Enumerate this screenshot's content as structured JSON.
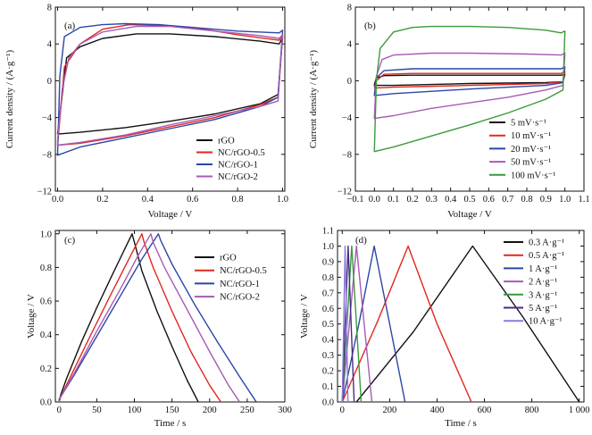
{
  "chart_data": [
    {
      "id": "a",
      "panel_label": "(a)",
      "type": "line",
      "xlabel": "Voltage / V",
      "ylabel": "Current density / (A·g⁻¹)",
      "xlim": [
        -0.01,
        1.01
      ],
      "ylim": [
        -12,
        8
      ],
      "xticks": [
        0.0,
        0.2,
        0.4,
        0.6,
        0.8,
        1.0
      ],
      "xtick_labels": [
        "0.0",
        "0.2",
        "0.4",
        "0.6",
        "0.8",
        "1.0"
      ],
      "yticks": [
        -12,
        -8,
        -4,
        0,
        4,
        8
      ],
      "ytick_labels": [
        "−12",
        "−8",
        "−4",
        "0",
        "4",
        "8"
      ],
      "legend_position": "bottom-right",
      "series": [
        {
          "name": "rGO",
          "color": "#111111",
          "x": [
            0.0,
            0.04,
            0.1,
            0.2,
            0.35,
            0.5,
            0.7,
            0.9,
            0.985,
            1.0,
            0.98,
            0.9,
            0.7,
            0.5,
            0.3,
            0.1,
            0.0,
            0.0
          ],
          "y": [
            -5.8,
            2.5,
            3.7,
            4.6,
            5.1,
            5.1,
            4.8,
            4.3,
            4.0,
            4.7,
            -1.5,
            -2.5,
            -3.6,
            -4.4,
            -5.1,
            -5.6,
            -5.8,
            -5.8
          ]
        },
        {
          "name": "NC/rGO-0.5",
          "color": "#e0281e",
          "x": [
            0.0,
            0.03,
            0.1,
            0.2,
            0.32,
            0.45,
            0.6,
            0.8,
            0.985,
            1.0,
            0.98,
            0.9,
            0.7,
            0.5,
            0.3,
            0.1,
            0.0,
            0.0
          ],
          "y": [
            -7.0,
            1.5,
            4.0,
            5.6,
            6.1,
            6.0,
            5.8,
            5.0,
            4.4,
            5.0,
            -1.8,
            -2.6,
            -4.0,
            -5.0,
            -6.0,
            -6.8,
            -7.0,
            -7.0
          ]
        },
        {
          "name": "NC/rGO-1",
          "color": "#2b46a6",
          "x": [
            0.0,
            0.01,
            0.03,
            0.1,
            0.2,
            0.3,
            0.45,
            0.6,
            0.8,
            0.985,
            1.0,
            0.98,
            0.9,
            0.7,
            0.5,
            0.3,
            0.1,
            0.0,
            0.0
          ],
          "y": [
            -8.0,
            0.5,
            4.8,
            5.8,
            6.1,
            6.2,
            6.1,
            5.8,
            5.4,
            5.2,
            5.5,
            -1.8,
            -2.8,
            -4.2,
            -5.2,
            -6.2,
            -7.2,
            -8.1,
            -8.0
          ]
        },
        {
          "name": "NC/rGO-2",
          "color": "#a85ab4",
          "x": [
            0.0,
            0.02,
            0.05,
            0.1,
            0.2,
            0.35,
            0.5,
            0.7,
            0.9,
            0.985,
            1.0,
            0.98,
            0.9,
            0.7,
            0.5,
            0.3,
            0.1,
            0.0,
            0.0
          ],
          "y": [
            -6.5,
            -1.0,
            2.5,
            4.0,
            5.3,
            5.9,
            5.9,
            5.4,
            4.9,
            4.6,
            5.0,
            -2.2,
            -2.8,
            -3.8,
            -4.8,
            -5.9,
            -6.7,
            -7.0,
            -6.5
          ]
        }
      ]
    },
    {
      "id": "b",
      "panel_label": "(b)",
      "type": "line",
      "xlabel": "Voltage / V",
      "ylabel": "Current density / (A·g⁻¹)",
      "xlim": [
        -0.1,
        1.1
      ],
      "ylim": [
        -12,
        8
      ],
      "xticks": [
        -0.1,
        0.0,
        0.1,
        0.2,
        0.3,
        0.4,
        0.5,
        0.6,
        0.7,
        0.8,
        0.9,
        1.0,
        1.1
      ],
      "xtick_labels": [
        "−0.1",
        "0.0",
        "0.1",
        "0.2",
        "0.3",
        "0.4",
        "0.5",
        "0.6",
        "0.7",
        "0.8",
        "0.9",
        "1.0",
        "1.1"
      ],
      "yticks": [
        -12,
        -8,
        -4,
        0,
        4,
        8
      ],
      "ytick_labels": [
        "−12",
        "−8",
        "−4",
        "0",
        "4",
        "8"
      ],
      "legend_position": "bottom-right",
      "series": [
        {
          "name": "5 mV·s⁻¹",
          "color": "#111111",
          "x": [
            0.0,
            0.01,
            0.05,
            0.2,
            0.5,
            0.8,
            0.98,
            1.0,
            0.99,
            0.9,
            0.5,
            0.1,
            0.0,
            0.0
          ],
          "y": [
            -0.4,
            0.3,
            0.55,
            0.6,
            0.6,
            0.6,
            0.6,
            0.7,
            -0.1,
            -0.2,
            -0.3,
            -0.5,
            -0.5,
            -0.4
          ]
        },
        {
          "name": "10 mV·s⁻¹",
          "color": "#e0281e",
          "x": [
            0.0,
            0.01,
            0.05,
            0.2,
            0.5,
            0.8,
            0.98,
            1.0,
            0.99,
            0.9,
            0.5,
            0.1,
            0.0,
            0.0
          ],
          "y": [
            -0.8,
            0.0,
            0.7,
            0.8,
            0.8,
            0.8,
            0.8,
            1.0,
            -0.1,
            -0.3,
            -0.5,
            -0.7,
            -0.8,
            -0.8
          ]
        },
        {
          "name": "20 mV·s⁻¹",
          "color": "#2b46a6",
          "x": [
            0.0,
            0.01,
            0.05,
            0.2,
            0.5,
            0.8,
            0.98,
            1.0,
            0.99,
            0.9,
            0.5,
            0.1,
            0.0,
            0.0
          ],
          "y": [
            -1.5,
            0.3,
            1.1,
            1.3,
            1.3,
            1.3,
            1.3,
            1.5,
            -0.2,
            -0.5,
            -0.9,
            -1.4,
            -1.6,
            -1.5
          ]
        },
        {
          "name": "50 mV·s⁻¹",
          "color": "#a85ab4",
          "x": [
            0.0,
            0.01,
            0.04,
            0.1,
            0.3,
            0.5,
            0.8,
            0.98,
            1.0,
            0.99,
            0.9,
            0.7,
            0.5,
            0.3,
            0.1,
            0.0,
            0.0
          ],
          "y": [
            -4.0,
            0.5,
            2.3,
            2.8,
            3.0,
            3.0,
            2.9,
            2.8,
            3.0,
            -0.5,
            -1.0,
            -1.8,
            -2.4,
            -3.0,
            -3.8,
            -4.1,
            -4.0
          ]
        },
        {
          "name": "100 mV·s⁻¹",
          "color": "#3b9a3b",
          "x": [
            0.0,
            0.01,
            0.03,
            0.1,
            0.2,
            0.3,
            0.5,
            0.7,
            0.9,
            0.98,
            1.0,
            0.99,
            0.9,
            0.7,
            0.5,
            0.3,
            0.1,
            0.0,
            0.0
          ],
          "y": [
            -7.6,
            0.0,
            3.5,
            5.3,
            5.8,
            5.9,
            5.9,
            5.8,
            5.5,
            5.2,
            5.4,
            -1.0,
            -2.0,
            -3.5,
            -4.8,
            -6.0,
            -7.2,
            -7.7,
            -7.6
          ]
        }
      ]
    },
    {
      "id": "c",
      "panel_label": "(c)",
      "type": "line",
      "xlabel": "Time / s",
      "ylabel": "Voltage / V",
      "xlim": [
        -5,
        300
      ],
      "ylim": [
        0,
        1.02
      ],
      "xticks": [
        0,
        50,
        100,
        150,
        200,
        250,
        300
      ],
      "xtick_labels": [
        "0",
        "50",
        "100",
        "150",
        "200",
        "250",
        "300"
      ],
      "yticks": [
        0.0,
        0.2,
        0.4,
        0.6,
        0.8,
        1.0
      ],
      "ytick_labels": [
        "0.0",
        "0.2",
        "0.4",
        "0.6",
        "0.8",
        "1.0"
      ],
      "legend_position": "top-right",
      "series": [
        {
          "name": "rGO",
          "color": "#111111",
          "x": [
            0,
            2,
            10,
            30,
            50,
            70,
            97,
            100,
            110,
            130,
            150,
            170,
            185
          ],
          "y": [
            0.0,
            0.04,
            0.14,
            0.36,
            0.56,
            0.75,
            1.0,
            0.95,
            0.78,
            0.54,
            0.33,
            0.13,
            0.0
          ]
        },
        {
          "name": "NC/rGO-0.5",
          "color": "#e0281e",
          "x": [
            0,
            2,
            15,
            40,
            70,
            95,
            110,
            113,
            125,
            150,
            175,
            200,
            215
          ],
          "y": [
            0.0,
            0.03,
            0.15,
            0.38,
            0.65,
            0.87,
            1.0,
            0.95,
            0.8,
            0.54,
            0.3,
            0.1,
            0.0
          ]
        },
        {
          "name": "NC/rGO-1",
          "color": "#2b46a6",
          "x": [
            0,
            2,
            20,
            50,
            80,
            110,
            132,
            135,
            150,
            180,
            210,
            240,
            262
          ],
          "y": [
            0.0,
            0.03,
            0.16,
            0.39,
            0.62,
            0.85,
            1.0,
            0.96,
            0.82,
            0.58,
            0.36,
            0.15,
            0.0
          ]
        },
        {
          "name": "NC/rGO-2",
          "color": "#a85ab4",
          "x": [
            0,
            2,
            20,
            50,
            80,
            105,
            122,
            125,
            140,
            170,
            200,
            225,
            240
          ],
          "y": [
            0.0,
            0.03,
            0.17,
            0.42,
            0.66,
            0.87,
            1.0,
            0.95,
            0.8,
            0.55,
            0.3,
            0.1,
            0.0
          ]
        }
      ]
    },
    {
      "id": "d",
      "panel_label": "(d)",
      "type": "line",
      "xlabel": "Time / s",
      "ylabel": "Voltage / V",
      "xlim": [
        -20,
        1020
      ],
      "ylim": [
        0,
        1.1
      ],
      "xticks": [
        0,
        200,
        400,
        600,
        800,
        1000
      ],
      "xtick_labels": [
        "0",
        "200",
        "400",
        "600",
        "800",
        "1 000"
      ],
      "yticks": [
        0.0,
        0.1,
        0.2,
        0.3,
        0.4,
        0.5,
        0.6,
        0.7,
        0.8,
        0.9,
        1.0,
        1.1
      ],
      "ytick_labels": [
        "0.0",
        "0.1",
        "0.2",
        "0.3",
        "0.4",
        "0.5",
        "0.6",
        "0.7",
        "0.8",
        "0.9",
        "1.0",
        "1.1"
      ],
      "legend_position": "top-right",
      "series": [
        {
          "name": "0.3 A·g⁻¹",
          "color": "#111111",
          "x": [
            60,
            300,
            550,
            760,
            1000
          ],
          "y": [
            0.0,
            0.45,
            1.0,
            0.55,
            0.0
          ]
        },
        {
          "name": "0.5 A·g⁻¹",
          "color": "#e0281e",
          "x": [
            0,
            150,
            278,
            400,
            545
          ],
          "y": [
            0.0,
            0.52,
            1.0,
            0.5,
            0.0
          ]
        },
        {
          "name": "1 A·g⁻¹",
          "color": "#2b46a6",
          "x": [
            0,
            70,
            135,
            200,
            265
          ],
          "y": [
            0.0,
            0.5,
            1.0,
            0.5,
            0.0
          ]
        },
        {
          "name": "2 A·g⁻¹",
          "color": "#a85ab4",
          "x": [
            0,
            60,
            125
          ],
          "y": [
            0.0,
            1.0,
            0.0
          ]
        },
        {
          "name": "3 A·g⁻¹",
          "color": "#3b9a3b",
          "x": [
            0,
            40,
            80
          ],
          "y": [
            0.0,
            1.0,
            0.0
          ]
        },
        {
          "name": "5 A·g⁻¹",
          "color": "#4a2a8a",
          "x": [
            0,
            25,
            50
          ],
          "y": [
            0.0,
            1.0,
            0.0
          ]
        },
        {
          "name": "10 A·g⁻¹",
          "color": "#8a7ad8",
          "x": [
            0,
            12,
            24
          ],
          "y": [
            0.0,
            1.0,
            0.0
          ]
        }
      ]
    }
  ]
}
